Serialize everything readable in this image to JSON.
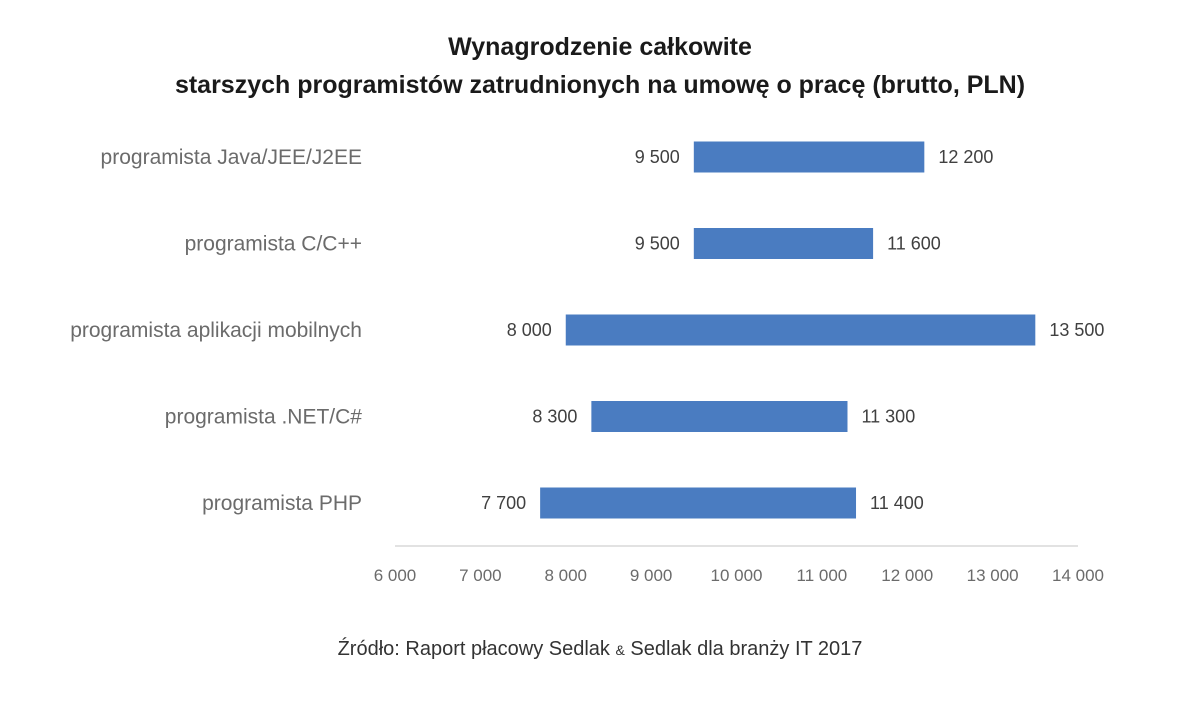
{
  "title_line1": "Wynagrodzenie całkowite",
  "title_line2": "starszych programistów zatrudnionych na umowę o pracę (brutto, PLN)",
  "source": {
    "prefix": "Źródło: Raport płacowy Sedlak ",
    "amp": "&",
    "suffix": " Sedlak dla branży IT 2017"
  },
  "colors": {
    "bar": "#4a7cc1",
    "axis": "#d9d9d9"
  },
  "chart_data": {
    "type": "bar",
    "orientation": "horizontal",
    "subtype": "floating-range",
    "title": "Wynagrodzenie całkowite starszych programistów zatrudnionych na umowę o pracę (brutto, PLN)",
    "categories": [
      "programista Java/JEE/J2EE",
      "programista C/C++",
      "programista aplikacji mobilnych",
      "programista .NET/C#",
      "programista PHP"
    ],
    "low": [
      9500,
      9500,
      8000,
      8300,
      7700
    ],
    "high": [
      12200,
      11600,
      13500,
      11300,
      11400
    ],
    "low_labels": [
      "9 500",
      "9 500",
      "8 000",
      "8 300",
      "7 700"
    ],
    "high_labels": [
      "12 200",
      "11 600",
      "13 500",
      "11 300",
      "11 400"
    ],
    "xlim": [
      6000,
      14000
    ],
    "xticks": [
      6000,
      7000,
      8000,
      9000,
      10000,
      11000,
      12000,
      13000,
      14000
    ],
    "xtick_labels": [
      "6 000",
      "7 000",
      "8 000",
      "9 000",
      "10 000",
      "11 000",
      "12 000",
      "13 000",
      "14 000"
    ],
    "grid": false,
    "legend": "none"
  }
}
